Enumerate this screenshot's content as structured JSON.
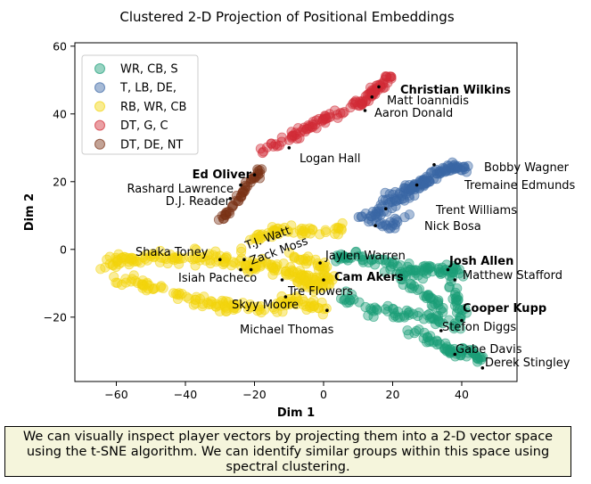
{
  "chart_data": {
    "type": "scatter",
    "title": "Clustered 2-D Projection of Positional Embeddings",
    "xlabel": "Dim 1",
    "ylabel": "Dim 2",
    "xlim": [
      -72,
      56
    ],
    "ylim": [
      -39,
      61
    ],
    "xticks": [
      -60,
      -40,
      -20,
      0,
      20,
      40
    ],
    "yticks": [
      -20,
      0,
      20,
      40,
      60
    ],
    "grid": false,
    "legend_position": "top-left",
    "series": [
      {
        "name": "WR, CB, S",
        "color": "#1b9e77",
        "regions": [
          {
            "x": [
              3,
              40
            ],
            "y": [
              -20,
              4
            ]
          },
          {
            "x": [
              22,
              48
            ],
            "y": [
              -35,
              -17
            ]
          }
        ]
      },
      {
        "name": "T, LB, DE,",
        "color": "#3a67a5",
        "regions": [
          {
            "x": [
              10,
              45
            ],
            "y": [
              7,
              26
            ]
          }
        ]
      },
      {
        "name": "RB, WR, CB",
        "color": "#f2d40b",
        "regions": [
          {
            "x": [
              -65,
              8
            ],
            "y": [
              -20,
              9
            ]
          }
        ]
      },
      {
        "name": "DT, G, C",
        "color": "#d12c36",
        "regions": [
          {
            "x": [
              -20,
              21
            ],
            "y": [
              27,
              56
            ]
          }
        ]
      },
      {
        "name": "DT, DE, NT",
        "color": "#7a3216",
        "regions": [
          {
            "x": [
              -31,
              -16
            ],
            "y": [
              7,
              25
            ]
          }
        ]
      }
    ],
    "annotations": [
      {
        "text": "Christian Wilkins",
        "x": 16,
        "y": 48,
        "bold": true
      },
      {
        "text": "Matt Ioannidis",
        "x": 14,
        "y": 45,
        "bold": false
      },
      {
        "text": "Aaron Donald",
        "x": 12,
        "y": 41,
        "bold": false
      },
      {
        "text": "Logan Hall",
        "x": -10,
        "y": 30,
        "bold": false
      },
      {
        "text": "Ed Oliver",
        "x": -20,
        "y": 22,
        "bold": true
      },
      {
        "text": "Rashard Lawrence",
        "x": -24,
        "y": 19,
        "bold": false
      },
      {
        "text": "D.J. Reader",
        "x": -27,
        "y": 15,
        "bold": false
      },
      {
        "text": "Bobby Wagner",
        "x": 32,
        "y": 25,
        "bold": false
      },
      {
        "text": "Tremaine Edmunds",
        "x": 27,
        "y": 19,
        "bold": false
      },
      {
        "text": "Trent Williams",
        "x": 18,
        "y": 12,
        "bold": false
      },
      {
        "text": "Nick Bosa",
        "x": 15,
        "y": 7,
        "bold": false
      },
      {
        "text": "T.J. Watt",
        "x": -23,
        "y": -3,
        "bold": false,
        "rotate": -20
      },
      {
        "text": "Zack Moss",
        "x": -21,
        "y": -6,
        "bold": false,
        "rotate": -20
      },
      {
        "text": "Shaka Toney",
        "x": -30,
        "y": -3,
        "bold": false
      },
      {
        "text": "Isiah Pacheco",
        "x": -24,
        "y": -6,
        "bold": false
      },
      {
        "text": "Jaylen Warren",
        "x": -1,
        "y": -4,
        "bold": false
      },
      {
        "text": "Cam Akers",
        "x": 0,
        "y": -9,
        "bold": true
      },
      {
        "text": "Tre Flowers",
        "x": -11,
        "y": -14,
        "bold": false
      },
      {
        "text": "Skyy Moore",
        "x": -12,
        "y": -9,
        "bold": false
      },
      {
        "text": "Michael Thomas",
        "x": 1,
        "y": -18,
        "bold": false
      },
      {
        "text": "Josh Allen",
        "x": 36,
        "y": -6,
        "bold": true
      },
      {
        "text": "Matthew Stafford",
        "x": 38,
        "y": -9,
        "bold": false
      },
      {
        "text": "Cooper Kupp",
        "x": 40,
        "y": -21,
        "bold": true
      },
      {
        "text": "Stefon Diggs",
        "x": 34,
        "y": -24,
        "bold": false
      },
      {
        "text": "Gabe Davis",
        "x": 38,
        "y": -31,
        "bold": false
      },
      {
        "text": "Derek Stingley",
        "x": 46,
        "y": -35,
        "bold": false
      }
    ]
  },
  "caption": {
    "lines": [
      "We can visually inspect player vectors by projecting them into a 2-D vector space",
      "using the t-SNE algorithm. We can identify similar groups within this space using",
      "spectral clustering."
    ]
  }
}
